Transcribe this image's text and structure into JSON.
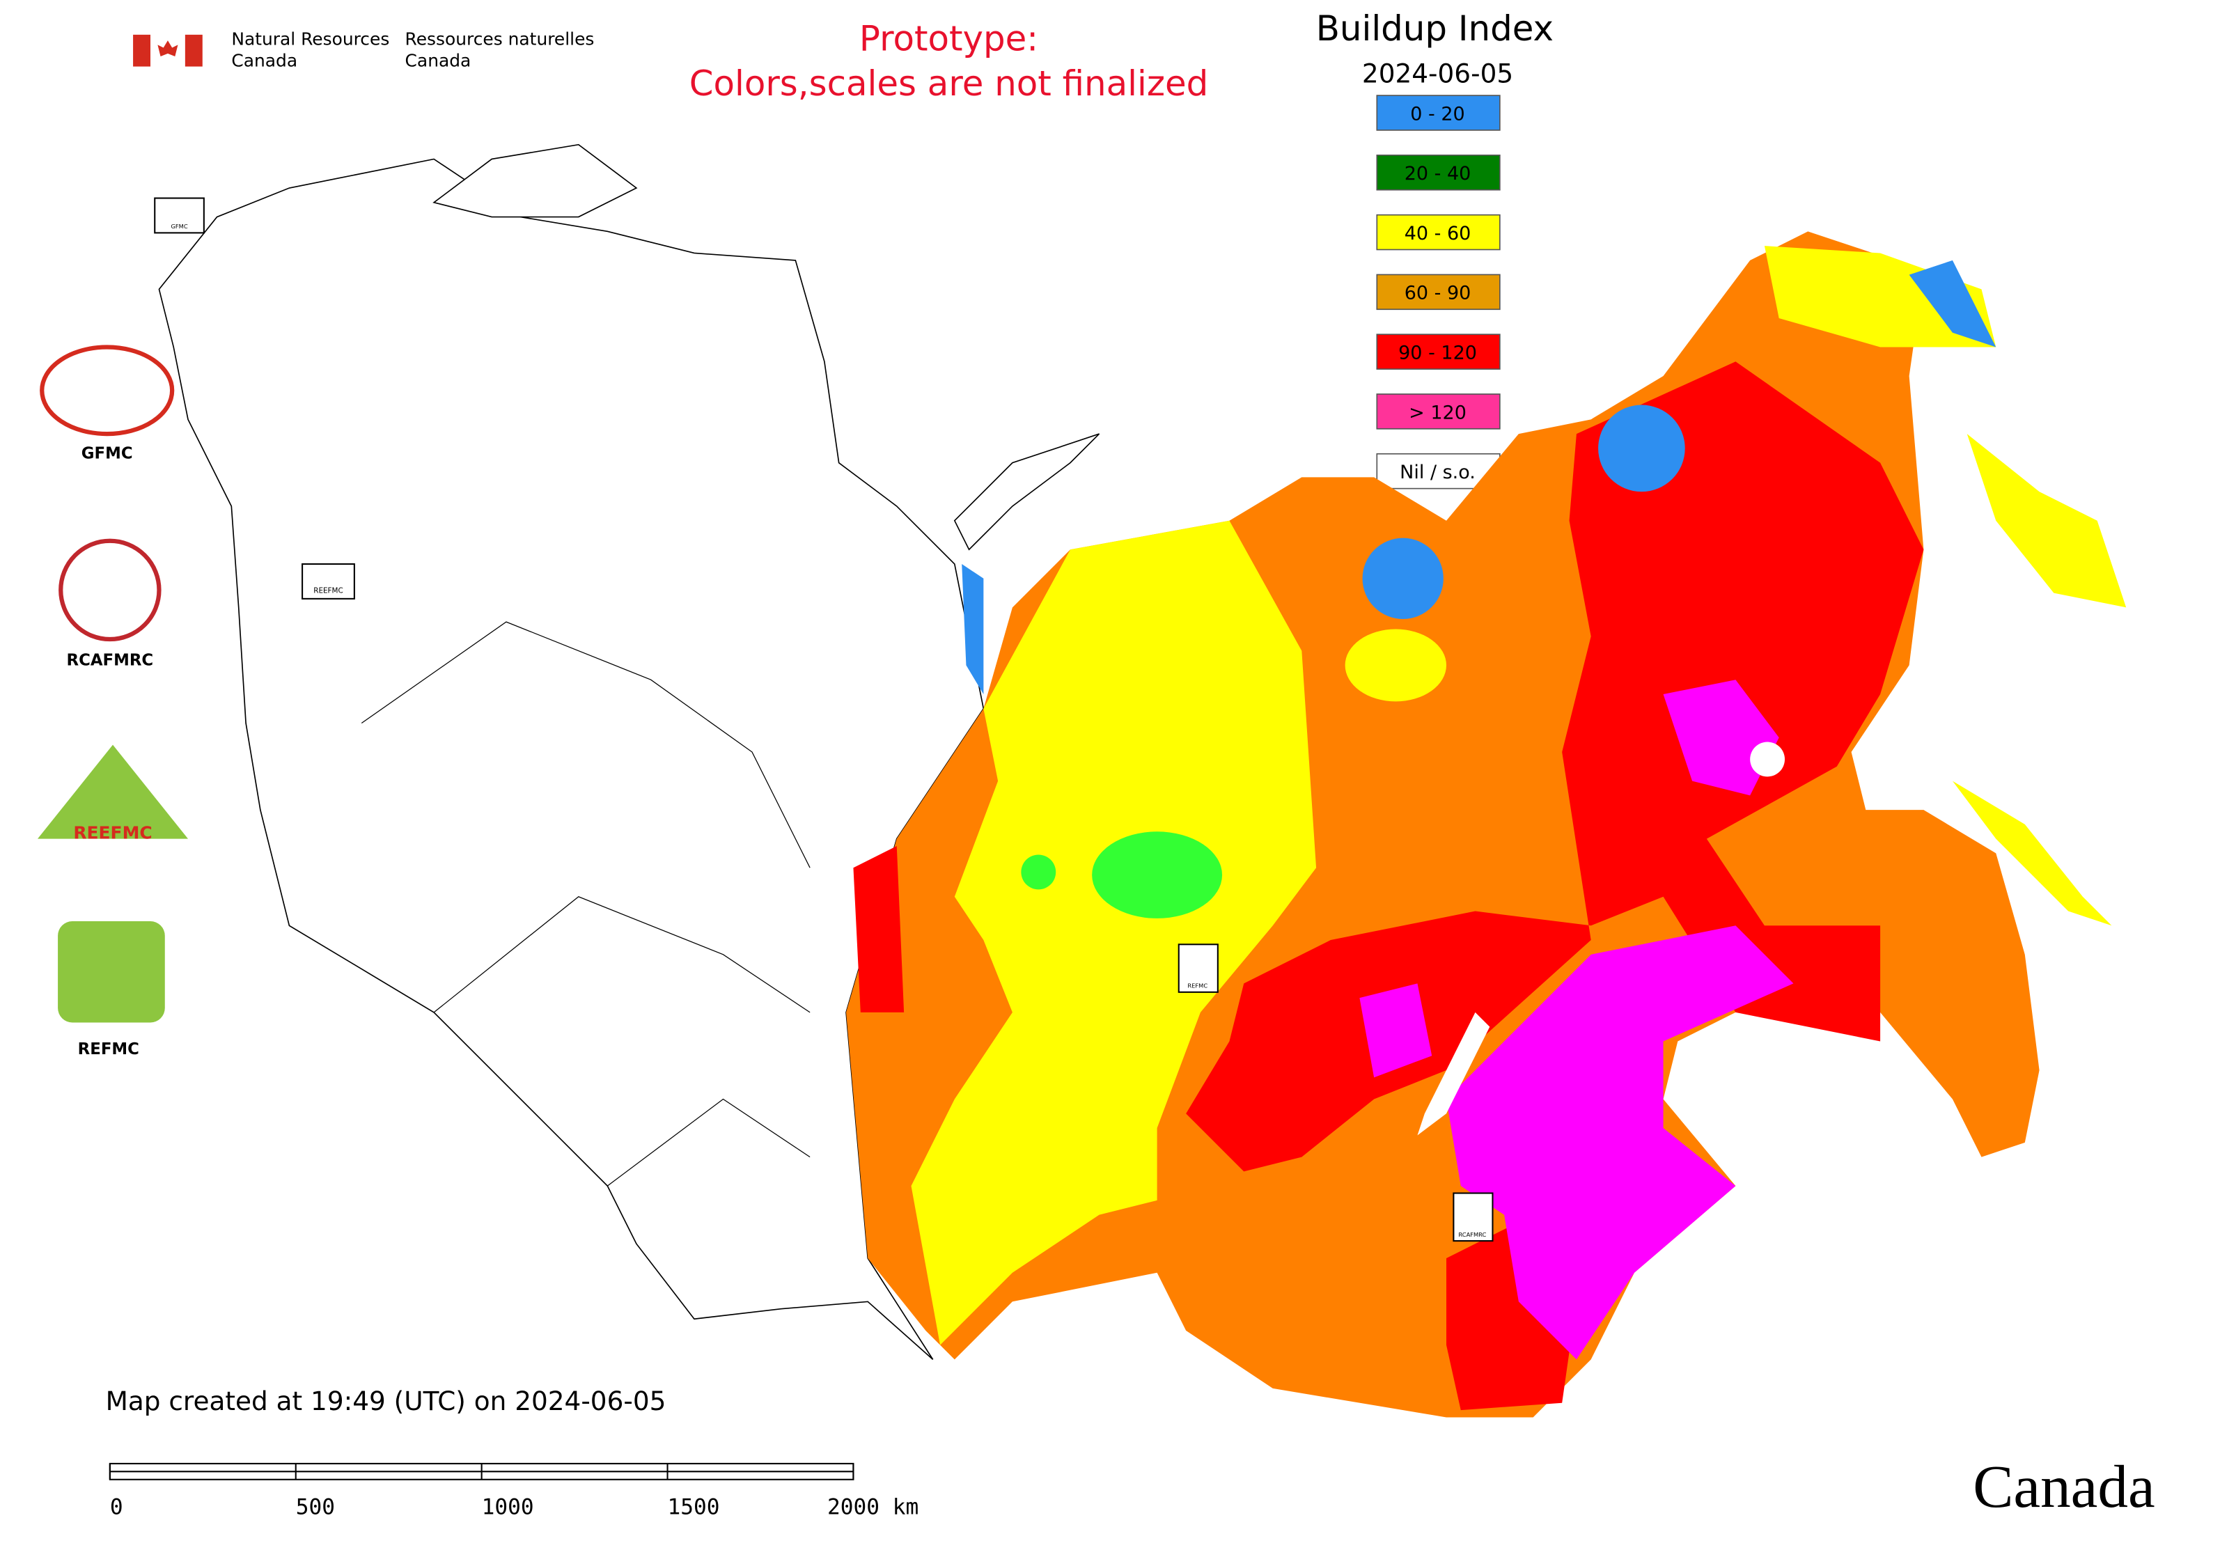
{
  "header": {
    "dept_en": [
      "Natural Resources",
      "Canada"
    ],
    "dept_fr": [
      "Ressources naturelles",
      "Canada"
    ],
    "notice": [
      "Prototype:",
      "Colors,scales are not finalized"
    ]
  },
  "legend": {
    "title": "Buildup Index",
    "date": "2024-06-05",
    "items": [
      {
        "label": "0 - 20",
        "color": "#2e8ff0"
      },
      {
        "label": "20 - 40",
        "color": "#008000"
      },
      {
        "label": "40 - 60",
        "color": "#ffff00"
      },
      {
        "label": "60 - 90",
        "color": "#e69a00"
      },
      {
        "label": "90 - 120",
        "color": "#ff0000"
      },
      {
        "label": "> 120",
        "color": "#ff3399"
      },
      {
        "label": "Nil / s.o.",
        "color": "#ffffff"
      }
    ]
  },
  "logos": [
    "GFMC",
    "RCAFMRC",
    "REEFMC",
    "REFMC"
  ],
  "map_markers": [
    "GFMC",
    "REEFMC",
    "REFMC",
    "RCAFMRC"
  ],
  "footer": {
    "created": "Map created at 19:49 (UTC) on 2024-06-05",
    "scale_bar": [
      "0",
      "500",
      "1000",
      "1500",
      "2000 km"
    ],
    "wordmark": "Canada"
  }
}
